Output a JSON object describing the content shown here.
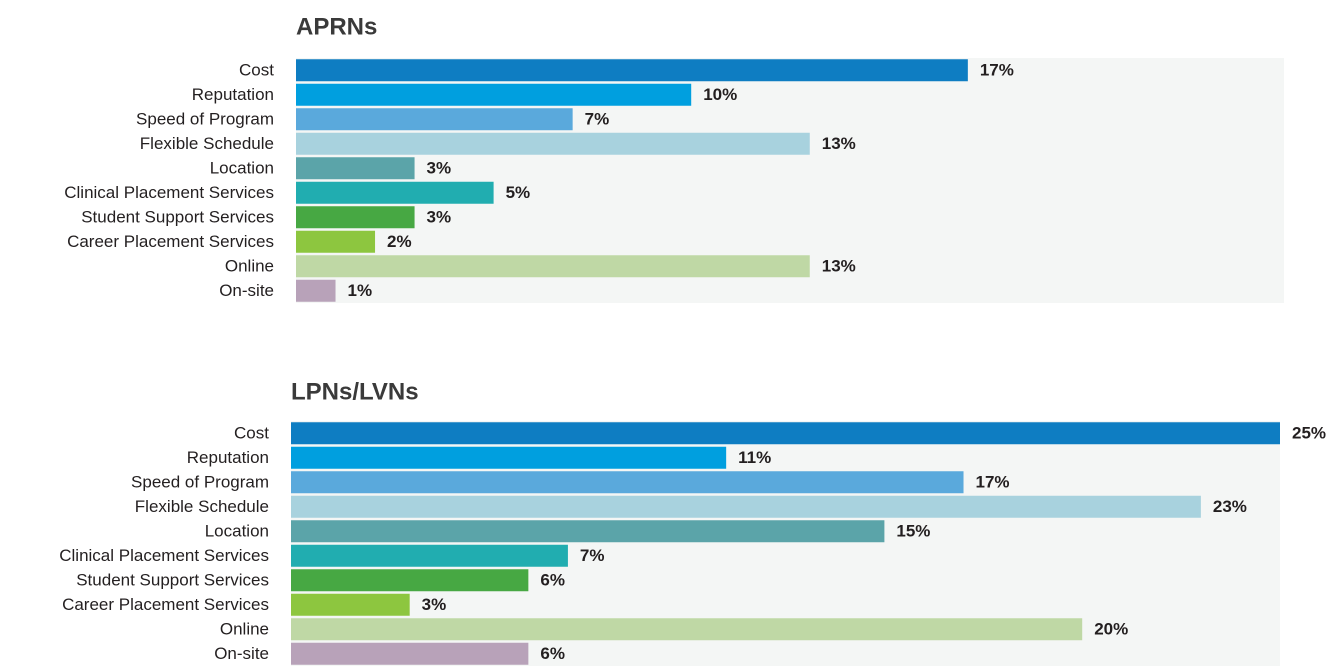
{
  "chart_data": [
    {
      "type": "bar",
      "orientation": "horizontal",
      "title": "APRNs",
      "categories": [
        "Cost",
        "Reputation",
        "Speed of Program",
        "Flexible Schedule",
        "Location",
        "Clinical Placement Services",
        "Student Support Services",
        "Career Placement Services",
        "Online",
        "On-site"
      ],
      "values": [
        17,
        10,
        7,
        13,
        3,
        5,
        3,
        2,
        13,
        1
      ],
      "value_labels": [
        "17%",
        "10%",
        "7%",
        "13%",
        "3%",
        "5%",
        "3%",
        "2%",
        "13%",
        "1%"
      ],
      "colors": [
        "#0e7dc2",
        "#009fdf",
        "#5aa9dc",
        "#a8d2de",
        "#5ba4a9",
        "#21adb0",
        "#47a843",
        "#8dc63f",
        "#bfd8a5",
        "#b8a2b9"
      ],
      "xlim": [
        0,
        25
      ]
    },
    {
      "type": "bar",
      "orientation": "horizontal",
      "title": "LPNs/LVNs",
      "categories": [
        "Cost",
        "Reputation",
        "Speed of Program",
        "Flexible Schedule",
        "Location",
        "Clinical Placement Services",
        "Student Support Services",
        "Career Placement Services",
        "Online",
        "On-site"
      ],
      "values": [
        25,
        11,
        17,
        23,
        15,
        7,
        6,
        3,
        20,
        6
      ],
      "value_labels": [
        "25%",
        "11%",
        "17%",
        "23%",
        "15%",
        "7%",
        "6%",
        "3%",
        "20%",
        "6%"
      ],
      "colors": [
        "#0e7dc2",
        "#009fdf",
        "#5aa9dc",
        "#a8d2de",
        "#5ba4a9",
        "#21adb0",
        "#47a843",
        "#8dc63f",
        "#bfd8a5",
        "#b8a2b9"
      ],
      "xlim": [
        0,
        25
      ]
    }
  ]
}
